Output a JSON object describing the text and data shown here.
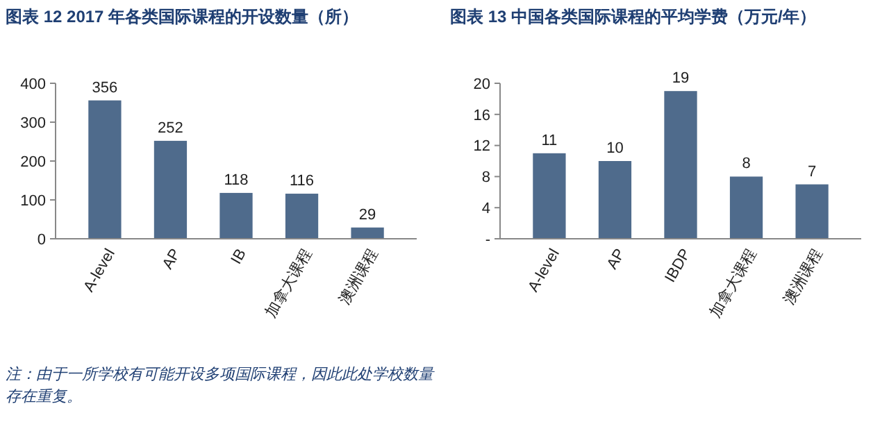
{
  "chart_data": [
    {
      "type": "bar",
      "title": "图表 12 2017 年各类国际课程的开设数量（所）",
      "categories": [
        "A-level",
        "AP",
        "IB",
        "加拿大课程",
        "澳洲课程"
      ],
      "values": [
        356,
        252,
        118,
        116,
        29
      ],
      "color": "#4f6b8c",
      "ylim": [
        0,
        400
      ],
      "yticks": [
        0,
        100,
        200,
        300,
        400
      ],
      "data_labels": true,
      "annotations": [
        "注：由于一所学校有可能开设多项国际课程，因此此处学校数量存在重复。"
      ]
    },
    {
      "type": "bar",
      "title": "图表 13 中国各类国际课程的平均学费（万元/年）",
      "categories": [
        "A-level",
        "AP",
        "IBDP",
        "加拿大课程",
        "澳洲课程"
      ],
      "values": [
        11,
        10,
        19,
        8,
        7
      ],
      "color": "#4f6b8c",
      "ylim": [
        0,
        20
      ],
      "yticks": [
        {
          "value": 0,
          "label": "-"
        },
        4,
        8,
        12,
        16,
        20
      ],
      "data_labels": true
    }
  ]
}
